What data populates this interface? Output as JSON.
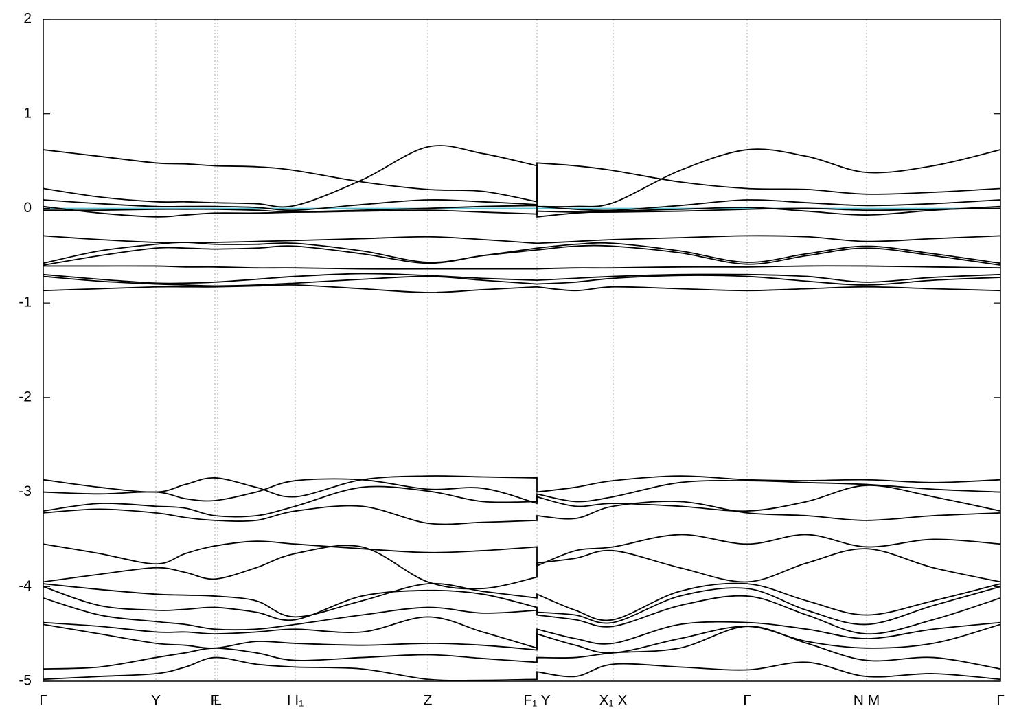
{
  "chart_data": {
    "type": "line",
    "xlim": [
      0,
      1394
    ],
    "ylim": [
      -5,
      2
    ],
    "yticks": [
      -5,
      -4,
      -3,
      -2,
      -1,
      0,
      1,
      2
    ],
    "xticks": [
      {
        "value": 0,
        "label": "Γ"
      },
      {
        "value": 164,
        "label": "Y"
      },
      {
        "value": 250,
        "label": "F"
      },
      {
        "value": 254,
        "label": "L"
      },
      {
        "value": 367,
        "label": "I I₁"
      },
      {
        "value": 560,
        "label": "Z"
      },
      {
        "value": 719,
        "label": "F₁ Y"
      },
      {
        "value": 830,
        "label": "X₁ X"
      },
      {
        "value": 1025,
        "label": "Γ"
      },
      {
        "value": 1199,
        "label": "N M"
      },
      {
        "value": 1394,
        "label": "Γ"
      }
    ],
    "grid": true,
    "hline": {
      "value": 0,
      "color": "#5fbfd0"
    },
    "x": [
      0,
      82,
      164,
      207,
      250,
      310,
      367,
      464,
      560,
      640,
      719,
      719,
      775,
      830,
      927,
      1025,
      1112,
      1199,
      1296,
      1394
    ],
    "series": [
      {
        "color": "#000000",
        "values": [
          0.62,
          0.55,
          0.48,
          0.47,
          0.45,
          0.44,
          0.4,
          0.28,
          0.2,
          0.18,
          0.07,
          0.48,
          0.45,
          0.4,
          0.28,
          0.21,
          0.2,
          0.15,
          0.17,
          0.21
        ]
      },
      {
        "color": "#000000",
        "values": [
          0.21,
          0.12,
          0.07,
          0.07,
          0.06,
          0.05,
          0.03,
          0.3,
          0.65,
          0.58,
          0.45,
          0.02,
          0.02,
          0.06,
          0.4,
          0.62,
          0.55,
          0.38,
          0.45,
          0.62
        ]
      },
      {
        "color": "#000000",
        "values": [
          0.09,
          0.05,
          0.02,
          0.02,
          0.02,
          0.01,
          -0.02,
          0.04,
          0.09,
          0.07,
          0.04,
          0.02,
          -0.01,
          -0.02,
          0.03,
          0.09,
          0.06,
          0.03,
          0.05,
          0.09
        ]
      },
      {
        "color": "#000000",
        "values": [
          0.02,
          -0.05,
          -0.09,
          -0.07,
          -0.05,
          -0.05,
          -0.04,
          -0.02,
          0.0,
          0.02,
          0.03,
          -0.09,
          -0.05,
          -0.03,
          -0.01,
          0.01,
          -0.03,
          -0.07,
          -0.02,
          0.02
        ]
      },
      {
        "color": "#000000",
        "values": [
          -0.02,
          -0.02,
          -0.01,
          -0.01,
          -0.01,
          -0.02,
          -0.04,
          -0.03,
          -0.02,
          -0.04,
          -0.06,
          -0.03,
          -0.04,
          -0.04,
          -0.03,
          -0.01,
          0.0,
          -0.02,
          -0.01,
          0.0
        ]
      },
      {
        "color": "#000000",
        "values": [
          -0.29,
          -0.33,
          -0.36,
          -0.36,
          -0.36,
          -0.35,
          -0.34,
          -0.32,
          -0.3,
          -0.33,
          -0.37,
          -0.37,
          -0.35,
          -0.33,
          -0.31,
          -0.29,
          -0.3,
          -0.35,
          -0.32,
          -0.29
        ]
      },
      {
        "color": "#000000",
        "values": [
          -0.58,
          -0.45,
          -0.38,
          -0.36,
          -0.38,
          -0.38,
          -0.37,
          -0.45,
          -0.57,
          -0.5,
          -0.42,
          -0.42,
          -0.38,
          -0.37,
          -0.45,
          -0.57,
          -0.48,
          -0.4,
          -0.48,
          -0.58
        ]
      },
      {
        "color": "#000000",
        "values": [
          -0.6,
          -0.5,
          -0.42,
          -0.42,
          -0.43,
          -0.42,
          -0.4,
          -0.48,
          -0.58,
          -0.5,
          -0.44,
          -0.44,
          -0.4,
          -0.4,
          -0.47,
          -0.59,
          -0.5,
          -0.42,
          -0.5,
          -0.6
        ]
      },
      {
        "color": "#000000",
        "values": [
          -0.61,
          -0.61,
          -0.61,
          -0.62,
          -0.62,
          -0.63,
          -0.63,
          -0.64,
          -0.64,
          -0.64,
          -0.64,
          -0.64,
          -0.63,
          -0.63,
          -0.62,
          -0.62,
          -0.61,
          -0.61,
          -0.62,
          -0.63
        ]
      },
      {
        "color": "#000000",
        "values": [
          -0.7,
          -0.75,
          -0.79,
          -0.79,
          -0.78,
          -0.75,
          -0.72,
          -0.69,
          -0.71,
          -0.74,
          -0.76,
          -0.76,
          -0.74,
          -0.72,
          -0.7,
          -0.7,
          -0.72,
          -0.78,
          -0.73,
          -0.7
        ]
      },
      {
        "color": "#000000",
        "values": [
          -0.72,
          -0.77,
          -0.8,
          -0.81,
          -0.82,
          -0.81,
          -0.79,
          -0.75,
          -0.72,
          -0.76,
          -0.8,
          -0.8,
          -0.78,
          -0.74,
          -0.71,
          -0.72,
          -0.77,
          -0.81,
          -0.76,
          -0.73
        ]
      },
      {
        "color": "#000000",
        "values": [
          -0.87,
          -0.85,
          -0.83,
          -0.83,
          -0.83,
          -0.82,
          -0.81,
          -0.85,
          -0.89,
          -0.86,
          -0.83,
          -0.83,
          -0.87,
          -0.83,
          -0.85,
          -0.87,
          -0.85,
          -0.83,
          -0.85,
          -0.87
        ]
      },
      {
        "color": "#000000",
        "values": [
          -2.87,
          -2.95,
          -3.0,
          -2.92,
          -2.85,
          -2.95,
          -3.05,
          -2.87,
          -2.83,
          -2.84,
          -2.85,
          -3.0,
          -2.95,
          -2.88,
          -2.83,
          -2.87,
          -2.88,
          -2.87,
          -2.9,
          -2.87
        ]
      },
      {
        "color": "#000000",
        "values": [
          -3.0,
          -3.02,
          -3.0,
          -3.07,
          -3.09,
          -3.0,
          -2.88,
          -2.87,
          -2.97,
          -2.96,
          -3.12,
          -3.02,
          -3.1,
          -3.05,
          -2.9,
          -2.88,
          -2.9,
          -2.92,
          -2.97,
          -3.0
        ]
      },
      {
        "color": "#000000",
        "values": [
          -3.2,
          -3.12,
          -3.15,
          -3.17,
          -3.25,
          -3.25,
          -3.15,
          -2.95,
          -2.99,
          -3.1,
          -3.1,
          -3.05,
          -3.15,
          -3.12,
          -3.15,
          -3.2,
          -3.1,
          -2.93,
          -3.05,
          -3.2
        ]
      },
      {
        "color": "#000000",
        "values": [
          -3.22,
          -3.18,
          -3.22,
          -3.27,
          -3.3,
          -3.3,
          -3.2,
          -3.15,
          -3.33,
          -3.32,
          -3.3,
          -3.25,
          -3.28,
          -3.15,
          -3.1,
          -3.22,
          -3.25,
          -3.3,
          -3.25,
          -3.22
        ]
      },
      {
        "color": "#000000",
        "values": [
          -3.55,
          -3.65,
          -3.76,
          -3.65,
          -3.57,
          -3.52,
          -3.55,
          -3.6,
          -3.64,
          -3.62,
          -3.58,
          -3.78,
          -3.62,
          -3.58,
          -3.45,
          -3.55,
          -3.45,
          -3.58,
          -3.5,
          -3.55
        ]
      },
      {
        "color": "#000000",
        "values": [
          -3.95,
          -3.87,
          -3.8,
          -3.85,
          -3.92,
          -3.8,
          -3.65,
          -3.58,
          -3.95,
          -4.02,
          -3.9,
          -3.75,
          -3.7,
          -3.62,
          -3.8,
          -3.95,
          -3.75,
          -3.6,
          -3.8,
          -3.95
        ]
      },
      {
        "color": "#000000",
        "values": [
          -3.97,
          -4.03,
          -4.08,
          -4.09,
          -4.1,
          -4.15,
          -4.32,
          -4.15,
          -3.97,
          -4.05,
          -4.12,
          -4.08,
          -4.25,
          -4.35,
          -4.05,
          -3.97,
          -4.15,
          -4.3,
          -4.15,
          -3.97
        ]
      },
      {
        "color": "#000000",
        "values": [
          -4.0,
          -4.2,
          -4.25,
          -4.24,
          -4.22,
          -4.27,
          -4.35,
          -4.1,
          -4.04,
          -4.08,
          -4.22,
          -4.27,
          -4.3,
          -4.38,
          -4.1,
          -4.02,
          -4.25,
          -4.4,
          -4.2,
          -4.0
        ]
      },
      {
        "color": "#000000",
        "values": [
          -4.12,
          -4.3,
          -4.37,
          -4.4,
          -4.45,
          -4.45,
          -4.4,
          -4.3,
          -4.22,
          -4.28,
          -4.25,
          -4.3,
          -4.35,
          -4.42,
          -4.2,
          -4.1,
          -4.3,
          -4.5,
          -4.35,
          -4.12
        ]
      },
      {
        "color": "#000000",
        "values": [
          -4.38,
          -4.42,
          -4.48,
          -4.48,
          -4.5,
          -4.48,
          -4.45,
          -4.48,
          -4.32,
          -4.48,
          -4.65,
          -4.45,
          -4.55,
          -4.6,
          -4.4,
          -4.38,
          -4.45,
          -4.55,
          -4.45,
          -4.38
        ]
      },
      {
        "color": "#000000",
        "values": [
          -4.4,
          -4.5,
          -4.6,
          -4.62,
          -4.65,
          -4.58,
          -4.6,
          -4.62,
          -4.6,
          -4.62,
          -4.67,
          -4.5,
          -4.62,
          -4.7,
          -4.55,
          -4.42,
          -4.58,
          -4.65,
          -4.6,
          -4.4
        ]
      },
      {
        "color": "#000000",
        "values": [
          -4.87,
          -4.85,
          -4.75,
          -4.7,
          -4.65,
          -4.7,
          -4.78,
          -4.75,
          -4.72,
          -4.76,
          -4.8,
          -4.75,
          -4.75,
          -4.7,
          -4.65,
          -4.42,
          -4.6,
          -4.78,
          -4.75,
          -4.87
        ]
      },
      {
        "color": "#000000",
        "values": [
          -4.98,
          -4.95,
          -4.92,
          -4.85,
          -4.75,
          -4.82,
          -4.85,
          -4.87,
          -4.98,
          -4.99,
          -4.98,
          -4.9,
          -4.95,
          -4.82,
          -4.85,
          -4.88,
          -4.8,
          -4.95,
          -4.92,
          -4.98
        ]
      }
    ]
  }
}
